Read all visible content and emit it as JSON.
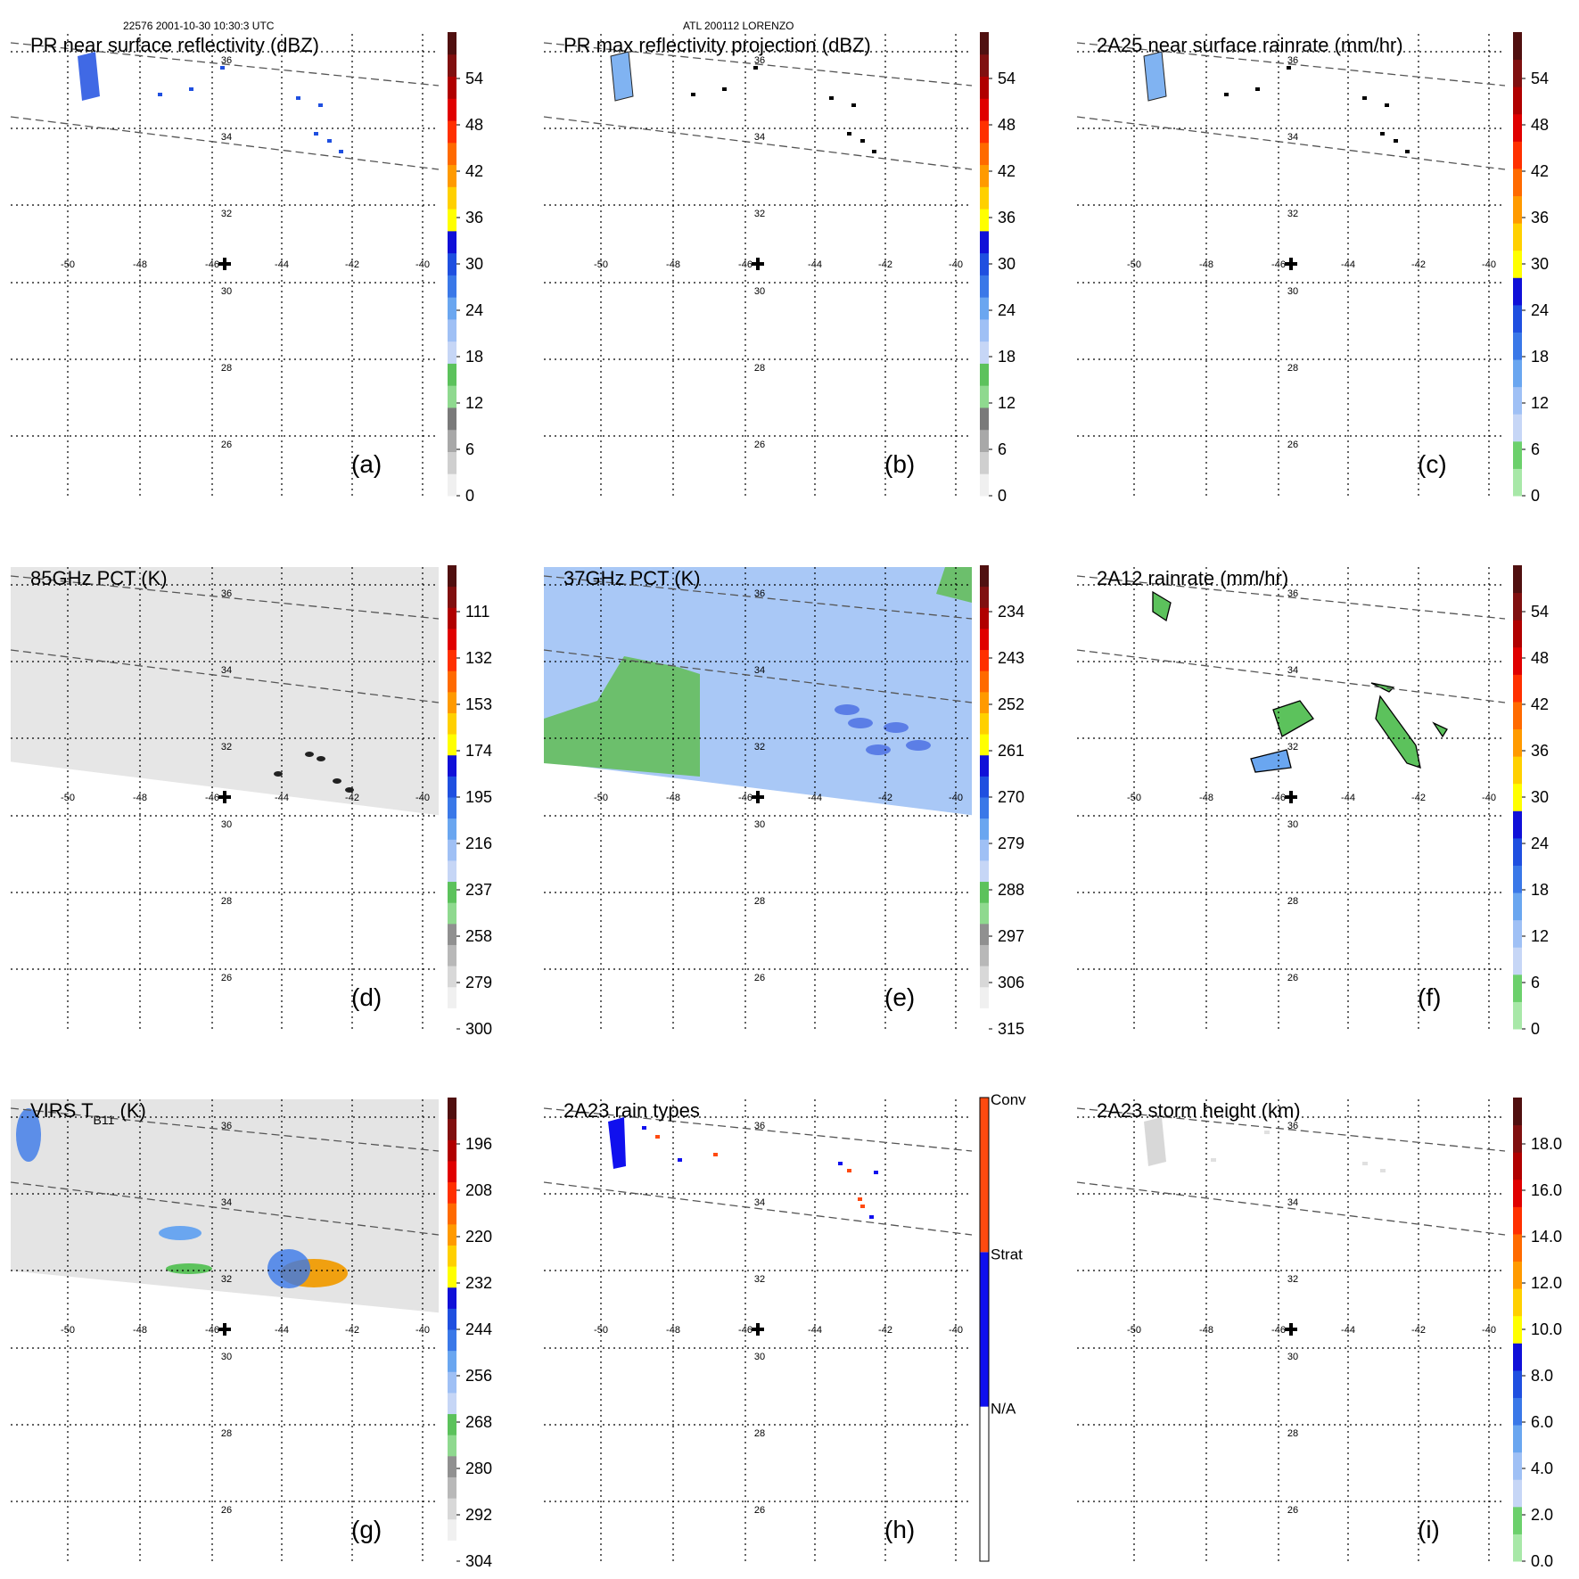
{
  "header": {
    "orbit_time": "22576 2001-10-30 10:30:3 UTC",
    "storm": "ATL 200112 LORENZO"
  },
  "colors": {
    "refl": [
      "#f0f0f0",
      "#cfcfcf",
      "#a8a8a8",
      "#7a7a7a",
      "#8fd98f",
      "#5cc25c",
      "#c6d6f6",
      "#9fc0f5",
      "#6aa6f0",
      "#3a78e8",
      "#1f4fe0",
      "#1010d8",
      "#ffff00",
      "#ffd000",
      "#ff9a00",
      "#ff6a00",
      "#ff3000",
      "#e00000",
      "#b00000",
      "#801010",
      "#501010"
    ],
    "tb": [
      "#ffffff",
      "#f0f0f0",
      "#d8d8d8",
      "#b8b8b8",
      "#909090",
      "#8fd98f",
      "#5cc25c",
      "#c6d6f6",
      "#9fc0f5",
      "#6aa6f0",
      "#3a78e8",
      "#1f4fe0",
      "#1010d8",
      "#ffff00",
      "#ffd000",
      "#ff9a00",
      "#ff6a00",
      "#ff3000",
      "#e00000",
      "#b00000",
      "#801010",
      "#501010"
    ],
    "rain": [
      "#a8e8a8",
      "#6cd06c",
      "#c6d6f6",
      "#9fc0f5",
      "#6aa6f0",
      "#3a78e8",
      "#1f4fe0",
      "#1010d8",
      "#ffff00",
      "#ffd000",
      "#ff9a00",
      "#ff6a00",
      "#ff3000",
      "#e00000",
      "#b00000",
      "#801010",
      "#501010"
    ],
    "type": [
      "#ffffff",
      "#1010ee",
      "#ff4a10"
    ],
    "pr_blue": "#1f4fe0",
    "pr_light": "#6aa6f0",
    "pr_green": "#5cc25c",
    "conv_red": "#ff4a10",
    "ir_gray": "#e4e4e4",
    "pct85_gray": "#e6e6e6",
    "pct37_blue": "#a9c8f6",
    "pct37_green": "#6cbf6c"
  },
  "grid_labels": {
    "lon": [
      "-50",
      "-48",
      "-46",
      "-44",
      "-42",
      "-40"
    ],
    "lat": [
      "36",
      "34",
      "32",
      "30",
      "28",
      "26"
    ]
  },
  "panels": [
    {
      "id": "a",
      "title": "PR near surface reflectivity (dBZ)",
      "letter": "(a)",
      "colorbar": "refl",
      "ticks": [
        "54",
        "48",
        "42",
        "36",
        "30",
        "24",
        "18",
        "12",
        "6",
        "0"
      ]
    },
    {
      "id": "b",
      "title": "PR max reflectivity projection (dBZ)",
      "letter": "(b)",
      "colorbar": "refl",
      "ticks": [
        "54",
        "48",
        "42",
        "36",
        "30",
        "24",
        "18",
        "12",
        "6",
        "0"
      ]
    },
    {
      "id": "c",
      "title": "2A25 near surface rainrate (mm/hr)",
      "letter": "(c)",
      "colorbar": "rain",
      "ticks": [
        "54",
        "48",
        "42",
        "36",
        "30",
        "24",
        "18",
        "12",
        "6",
        "0"
      ]
    },
    {
      "id": "d",
      "title": "85GHz PCT (K)",
      "letter": "(d)",
      "colorbar": "tb",
      "ticks": [
        "111",
        "132",
        "153",
        "174",
        "195",
        "216",
        "237",
        "258",
        "279",
        "300"
      ]
    },
    {
      "id": "e",
      "title": "37GHz PCT (K)",
      "letter": "(e)",
      "colorbar": "tb",
      "ticks": [
        "234",
        "243",
        "252",
        "261",
        "270",
        "279",
        "288",
        "297",
        "306",
        "315"
      ]
    },
    {
      "id": "f",
      "title": "2A12 rainrate (mm/hr)",
      "letter": "(f)",
      "colorbar": "rain",
      "ticks": [
        "54",
        "48",
        "42",
        "36",
        "30",
        "24",
        "18",
        "12",
        "6",
        "0"
      ]
    },
    {
      "id": "g",
      "title": "VIRS T",
      "title_sub": "B11",
      "title_suffix": "  (K)",
      "letter": "(g)",
      "colorbar": "tb",
      "ticks": [
        "196",
        "208",
        "220",
        "232",
        "244",
        "256",
        "268",
        "280",
        "292",
        "304"
      ]
    },
    {
      "id": "h",
      "title": "2A23 rain types",
      "letter": "(h)",
      "colorbar": "type",
      "ticks": [
        "Conv",
        "Strat",
        "N/A"
      ]
    },
    {
      "id": "i",
      "title": "2A23 storm height (km)",
      "letter": "(i)",
      "colorbar": "rain",
      "ticks": [
        "18.0",
        "16.0",
        "14.0",
        "12.0",
        "10.0",
        "8.0",
        "6.0",
        "4.0",
        "2.0",
        "0.0"
      ]
    }
  ]
}
